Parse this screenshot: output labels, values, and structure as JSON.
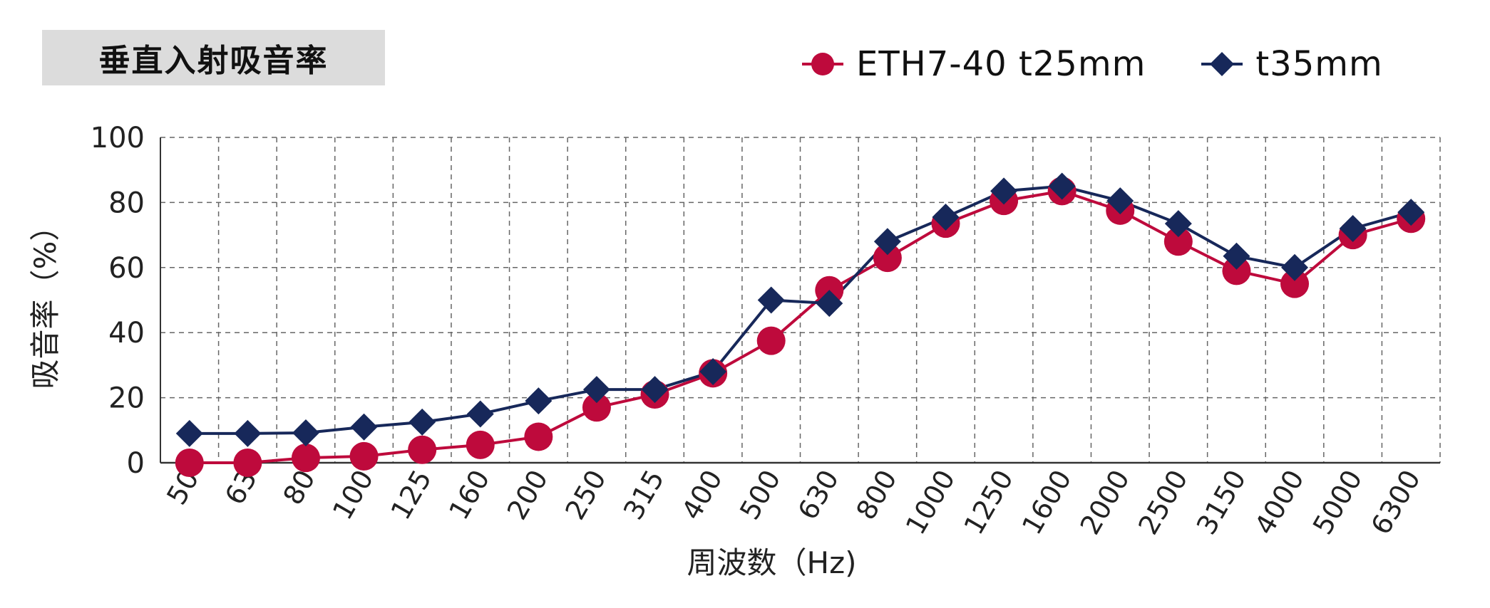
{
  "title": "垂直入射吸音率",
  "colors": {
    "series1": "#be0a3c",
    "series2": "#17285a",
    "grid": "#666666",
    "title_bg": "#dcdcdc"
  },
  "chart_data": {
    "type": "line",
    "title": "垂直入射吸音率",
    "xlabel": "周波数（Hz)",
    "ylabel": "吸音率（%）",
    "ylim": [
      0,
      100
    ],
    "yticks": [
      "0",
      "20",
      "40",
      "60",
      "80",
      "100"
    ],
    "grid": true,
    "legend_position": "top-right",
    "categories": [
      "50",
      "63",
      "80",
      "100",
      "125",
      "160",
      "200",
      "250",
      "315",
      "400",
      "500",
      "630",
      "800",
      "1000",
      "1250",
      "1600",
      "2000",
      "2500",
      "3150",
      "4000",
      "5000",
      "6300"
    ],
    "series": [
      {
        "name": "ETH7-40 t25mm",
        "marker": "circle",
        "values": [
          0,
          0,
          1.5,
          2,
          4,
          5.5,
          8,
          17,
          21,
          27.5,
          37.5,
          53,
          63,
          73.5,
          80.5,
          83.5,
          77.5,
          68,
          59,
          55,
          70,
          75
        ]
      },
      {
        "name": "t35mm",
        "marker": "diamond",
        "values": [
          9,
          9,
          9.2,
          11,
          12.5,
          15,
          19,
          22.5,
          22.5,
          28,
          50,
          49,
          68,
          75.5,
          83.5,
          85,
          80.5,
          73.5,
          63.5,
          60,
          72,
          77
        ]
      }
    ]
  }
}
